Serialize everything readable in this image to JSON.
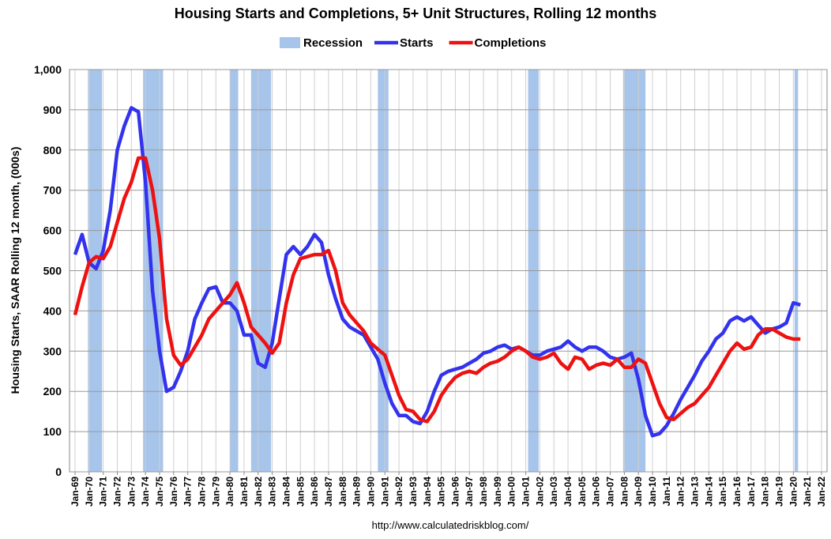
{
  "chart_data": {
    "type": "line",
    "title": "Housing Starts and Completions, 5+ Unit Structures, Rolling 12 months",
    "y_label": "Housing Starts, SAAR Rolling 12 month, (000s)",
    "source": "http://www.calculatedriskblog.com/",
    "recessions": {
      "name": "Recession",
      "color": "#a7c4ea",
      "periods": [
        [
          "Dec-69",
          "Nov-70"
        ],
        [
          "Nov-73",
          "Mar-75"
        ],
        [
          "Jan-80",
          "Jul-80"
        ],
        [
          "Jul-81",
          "Nov-82"
        ],
        [
          "Jul-90",
          "Mar-91"
        ],
        [
          "Mar-01",
          "Nov-01"
        ],
        [
          "Dec-07",
          "Jun-09"
        ],
        [
          "Feb-20",
          "Apr-20"
        ]
      ]
    },
    "x": [
      "Jan-69",
      "Jul-69",
      "Jan-70",
      "Jul-70",
      "Jan-71",
      "Jul-71",
      "Jan-72",
      "Jul-72",
      "Jan-73",
      "Jul-73",
      "Jan-74",
      "Jul-74",
      "Jan-75",
      "Jul-75",
      "Jan-76",
      "Jul-76",
      "Jan-77",
      "Jul-77",
      "Jan-78",
      "Jul-78",
      "Jan-79",
      "Jul-79",
      "Jan-80",
      "Jul-80",
      "Jan-81",
      "Jul-81",
      "Jan-82",
      "Jul-82",
      "Jan-83",
      "Jul-83",
      "Jan-84",
      "Jul-84",
      "Jan-85",
      "Jul-85",
      "Jan-86",
      "Jul-86",
      "Jan-87",
      "Jul-87",
      "Jan-88",
      "Jul-88",
      "Jan-89",
      "Jul-89",
      "Jan-90",
      "Jul-90",
      "Jan-91",
      "Jul-91",
      "Jan-92",
      "Jul-92",
      "Jan-93",
      "Jul-93",
      "Jan-94",
      "Jul-94",
      "Jan-95",
      "Jul-95",
      "Jan-96",
      "Jul-96",
      "Jan-97",
      "Jul-97",
      "Jan-98",
      "Jul-98",
      "Jan-99",
      "Jul-99",
      "Jan-00",
      "Jul-00",
      "Jan-01",
      "Jul-01",
      "Jan-02",
      "Jul-02",
      "Jan-03",
      "Jul-03",
      "Jan-04",
      "Jul-04",
      "Jan-05",
      "Jul-05",
      "Jan-06",
      "Jul-06",
      "Jan-07",
      "Jul-07",
      "Jan-08",
      "Jul-08",
      "Jan-09",
      "Jul-09",
      "Jan-10",
      "Jul-10",
      "Jan-11",
      "Jul-11",
      "Jan-12",
      "Jul-12",
      "Jan-13",
      "Jul-13",
      "Jan-14",
      "Jul-14",
      "Jan-15",
      "Jul-15",
      "Jan-16",
      "Jul-16",
      "Jan-17",
      "Jul-17",
      "Jan-18",
      "Jul-18",
      "Jan-19",
      "Jul-19",
      "Jan-20",
      "Jul-20"
    ],
    "series": [
      {
        "name": "Starts",
        "color": "#3333ee",
        "values": [
          540,
          590,
          520,
          505,
          550,
          650,
          800,
          860,
          905,
          895,
          720,
          450,
          300,
          200,
          210,
          250,
          300,
          380,
          420,
          455,
          460,
          420,
          420,
          400,
          340,
          340,
          270,
          260,
          320,
          430,
          540,
          560,
          540,
          560,
          590,
          570,
          490,
          430,
          380,
          360,
          350,
          340,
          310,
          280,
          220,
          170,
          140,
          140,
          125,
          120,
          150,
          200,
          240,
          250,
          255,
          260,
          270,
          280,
          295,
          300,
          310,
          315,
          305,
          310,
          300,
          290,
          290,
          300,
          305,
          310,
          325,
          310,
          300,
          310,
          310,
          300,
          285,
          280,
          285,
          295,
          230,
          140,
          90,
          95,
          115,
          145,
          180,
          210,
          240,
          275,
          300,
          330,
          345,
          375,
          385,
          375,
          385,
          365,
          345,
          355,
          360,
          370,
          420,
          415
        ]
      },
      {
        "name": "Completions",
        "color": "#ee1111",
        "values": [
          390,
          460,
          520,
          535,
          530,
          560,
          620,
          680,
          720,
          780,
          780,
          700,
          580,
          380,
          290,
          265,
          280,
          310,
          340,
          380,
          400,
          420,
          440,
          470,
          420,
          360,
          340,
          320,
          295,
          320,
          420,
          490,
          530,
          535,
          540,
          540,
          550,
          500,
          420,
          390,
          370,
          350,
          320,
          305,
          290,
          240,
          190,
          155,
          150,
          130,
          125,
          150,
          190,
          215,
          235,
          245,
          250,
          245,
          260,
          270,
          275,
          285,
          300,
          310,
          300,
          285,
          280,
          285,
          295,
          270,
          255,
          285,
          280,
          255,
          265,
          270,
          265,
          280,
          260,
          260,
          280,
          270,
          220,
          170,
          135,
          130,
          145,
          160,
          170,
          190,
          210,
          240,
          270,
          300,
          320,
          305,
          310,
          340,
          355,
          355,
          345,
          335,
          330,
          330
        ]
      }
    ],
    "xlim": [
      "Jan-69",
      "Jan-22"
    ],
    "xticks": [
      "Jan-69",
      "Jan-70",
      "Jan-71",
      "Jan-72",
      "Jan-73",
      "Jan-74",
      "Jan-75",
      "Jan-76",
      "Jan-77",
      "Jan-78",
      "Jan-79",
      "Jan-80",
      "Jan-81",
      "Jan-82",
      "Jan-83",
      "Jan-84",
      "Jan-85",
      "Jan-86",
      "Jan-87",
      "Jan-88",
      "Jan-89",
      "Jan-90",
      "Jan-91",
      "Jan-92",
      "Jan-93",
      "Jan-94",
      "Jan-95",
      "Jan-96",
      "Jan-97",
      "Jan-98",
      "Jan-99",
      "Jan-00",
      "Jan-01",
      "Jan-02",
      "Jan-03",
      "Jan-04",
      "Jan-05",
      "Jan-06",
      "Jan-07",
      "Jan-08",
      "Jan-09",
      "Jan-10",
      "Jan-11",
      "Jan-12",
      "Jan-13",
      "Jan-14",
      "Jan-15",
      "Jan-16",
      "Jan-17",
      "Jan-18",
      "Jan-19",
      "Jan-20",
      "Jan-21",
      "Jan-22"
    ],
    "ylim": [
      0,
      1000
    ],
    "yticks": [
      0,
      100,
      200,
      300,
      400,
      500,
      600,
      700,
      800,
      900,
      {
        "value": 1000,
        "label": "1,000"
      }
    ],
    "grid": true
  }
}
